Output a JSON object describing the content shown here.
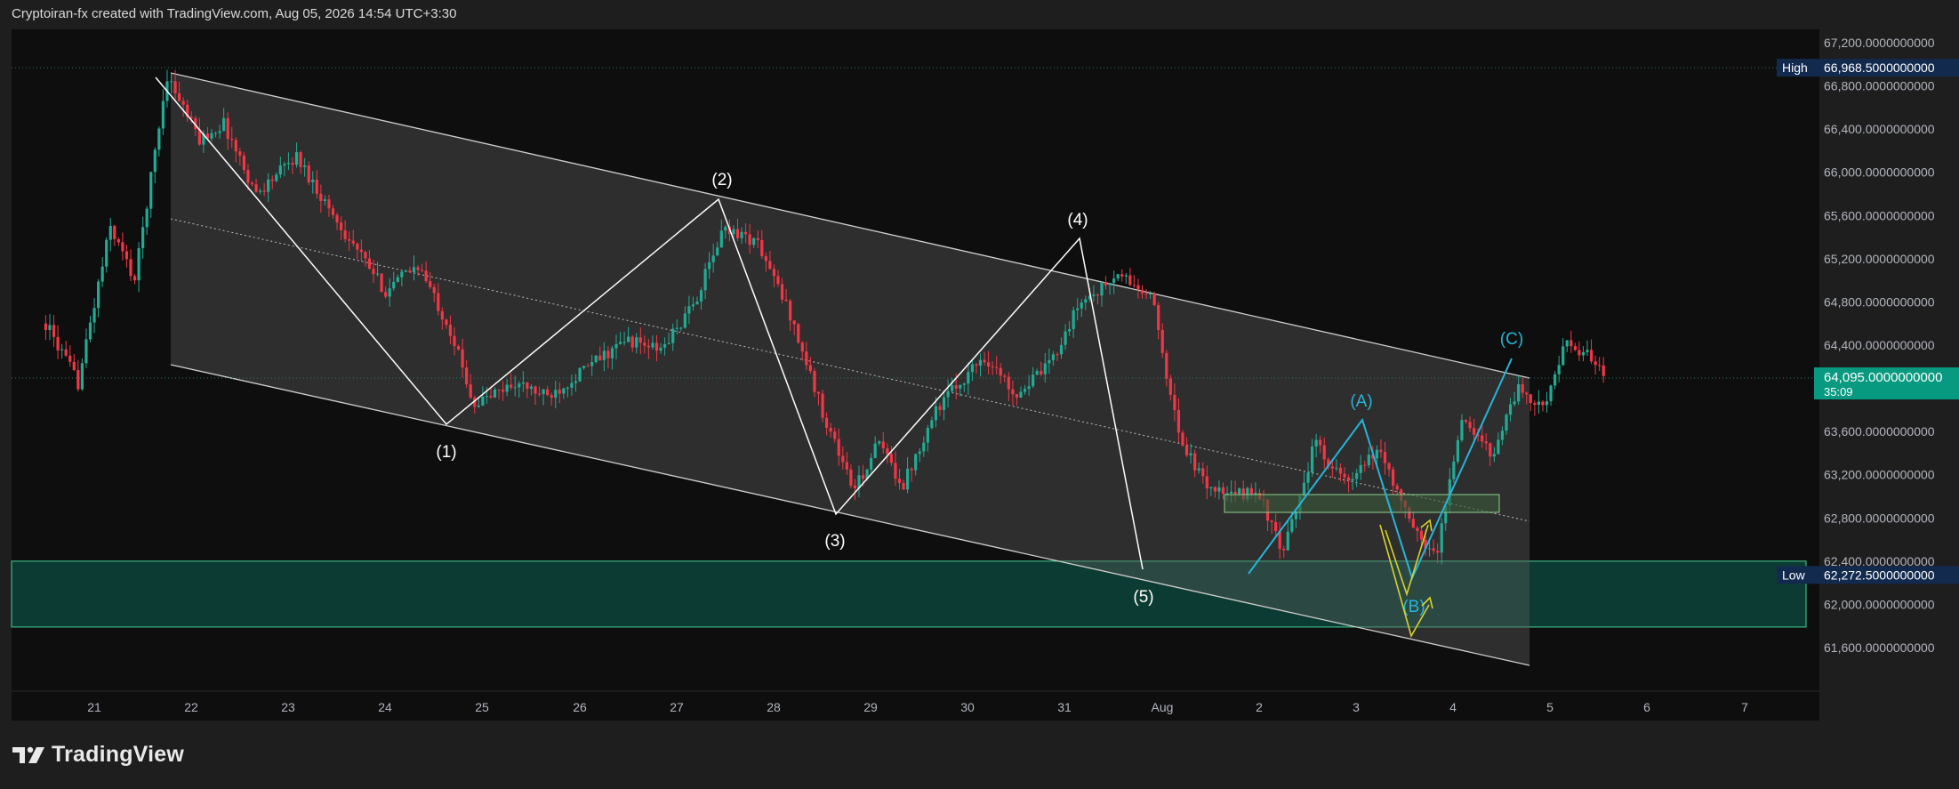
{
  "header": {
    "caption": "Cryptoiran-fx created with TradingView.com, Aug 05, 2026 14:54 UTC+3:30"
  },
  "branding": {
    "logo_text": "TradingView",
    "logo_icon": "tradingview-logo-icon"
  },
  "colors": {
    "background": "#1e1e1e",
    "plot_background": "#0e0e0e",
    "up_candle": "#22ab94",
    "down_candle": "#f23645",
    "channel_fill": "#5a5a5a",
    "wave_line": "#ffffff",
    "corrective_line": "#26b5d9",
    "yellow_line": "#d8d32a",
    "zone_fill": "#0c3b33",
    "zone_border": "#3fd394",
    "last_price_badge": "#089981",
    "high_low_badge": "#122a4e"
  },
  "chart_data": {
    "type": "candlestick",
    "symbol_timeframe": "1h",
    "x_axis": {
      "labels": [
        "21",
        "22",
        "23",
        "24",
        "25",
        "26",
        "27",
        "28",
        "29",
        "30",
        "31",
        "Aug",
        "2",
        "3",
        "4",
        "5",
        "6",
        "7"
      ]
    },
    "y_axis": {
      "range": [
        61400,
        67300
      ],
      "tick_labels": [
        "67,200.0000000000",
        "66,800.0000000000",
        "66,400.0000000000",
        "66,000.0000000000",
        "65,600.0000000000",
        "65,200.0000000000",
        "64,800.0000000000",
        "64,400.0000000000",
        "64,000.0000000000",
        "63,600.0000000000",
        "63,200.0000000000",
        "62,800.0000000000",
        "62,400.0000000000",
        "62,000.0000000000",
        "61,600.0000000000"
      ],
      "tick_values": [
        67200,
        66800,
        66400,
        66000,
        65600,
        65200,
        64800,
        64400,
        64000,
        63600,
        63200,
        62800,
        62400,
        62000,
        61600
      ]
    },
    "high": {
      "label": "High",
      "value_text": "66,968.5000000000",
      "value": 66968.5
    },
    "low": {
      "label": "Low",
      "value_text": "62,272.5000000000",
      "value": 62272.5
    },
    "last_price": {
      "value_text": "64,095.0000000000",
      "countdown": "35:09",
      "value": 64095
    },
    "price_path": [
      [
        "07-20 12:00",
        64600
      ],
      [
        "07-20 20:00",
        64050
      ],
      [
        "07-21 04:00",
        65500
      ],
      [
        "07-21 10:00",
        65000
      ],
      [
        "07-21 18:00",
        66900
      ],
      [
        "07-22 02:00",
        66300
      ],
      [
        "07-22 08:00",
        66450
      ],
      [
        "07-22 16:00",
        65800
      ],
      [
        "07-23 02:00",
        66150
      ],
      [
        "07-23 12:00",
        65550
      ],
      [
        "07-24 00:00",
        64900
      ],
      [
        "07-24 08:00",
        65150
      ],
      [
        "07-24 16:00",
        64550
      ],
      [
        "07-24 22:00",
        63850
      ],
      [
        "07-25 08:00",
        64050
      ],
      [
        "07-25 16:00",
        63920
      ],
      [
        "07-26 04:00",
        64250
      ],
      [
        "07-26 12:00",
        64450
      ],
      [
        "07-26 20:00",
        64350
      ],
      [
        "07-27 04:00",
        64750
      ],
      [
        "07-27 12:00",
        65500
      ],
      [
        "07-27 20:00",
        65350
      ],
      [
        "07-28 04:00",
        64700
      ],
      [
        "07-28 12:00",
        63800
      ],
      [
        "07-28 20:00",
        63050
      ],
      [
        "07-29 02:00",
        63500
      ],
      [
        "07-29 08:00",
        63100
      ],
      [
        "07-29 16:00",
        63800
      ],
      [
        "07-30 04:00",
        64300
      ],
      [
        "07-30 12:00",
        63950
      ],
      [
        "07-30 20:00",
        64200
      ],
      [
        "07-31 04:00",
        64800
      ],
      [
        "07-31 08:00",
        64900
      ],
      [
        "07-31 14:00",
        65050
      ],
      [
        "07-31 22:00",
        64800
      ],
      [
        "08-01 04:00",
        63600
      ],
      [
        "08-01 10:00",
        63150
      ],
      [
        "08-01 16:00",
        63000
      ],
      [
        "08-02 00:00",
        63050
      ],
      [
        "08-02 06:00",
        62450
      ],
      [
        "08-02 14:00",
        63500
      ],
      [
        "08-02 22:00",
        63100
      ],
      [
        "08-03 06:00",
        63450
      ],
      [
        "08-03 14:00",
        62700
      ],
      [
        "08-03 20:00",
        62450
      ],
      [
        "08-04 02:00",
        63700
      ],
      [
        "08-04 10:00",
        63400
      ],
      [
        "08-04 16:00",
        64000
      ],
      [
        "08-04 22:00",
        63800
      ],
      [
        "08-05 04:00",
        64400
      ],
      [
        "08-05 12:00",
        64250
      ],
      [
        "08-05 14:00",
        64095
      ]
    ],
    "wave_labels": [
      "(1)",
      "(2)",
      "(3)",
      "(4)",
      "(5)"
    ],
    "correction_labels": [
      "(A)",
      "(B)",
      "(C)"
    ]
  }
}
